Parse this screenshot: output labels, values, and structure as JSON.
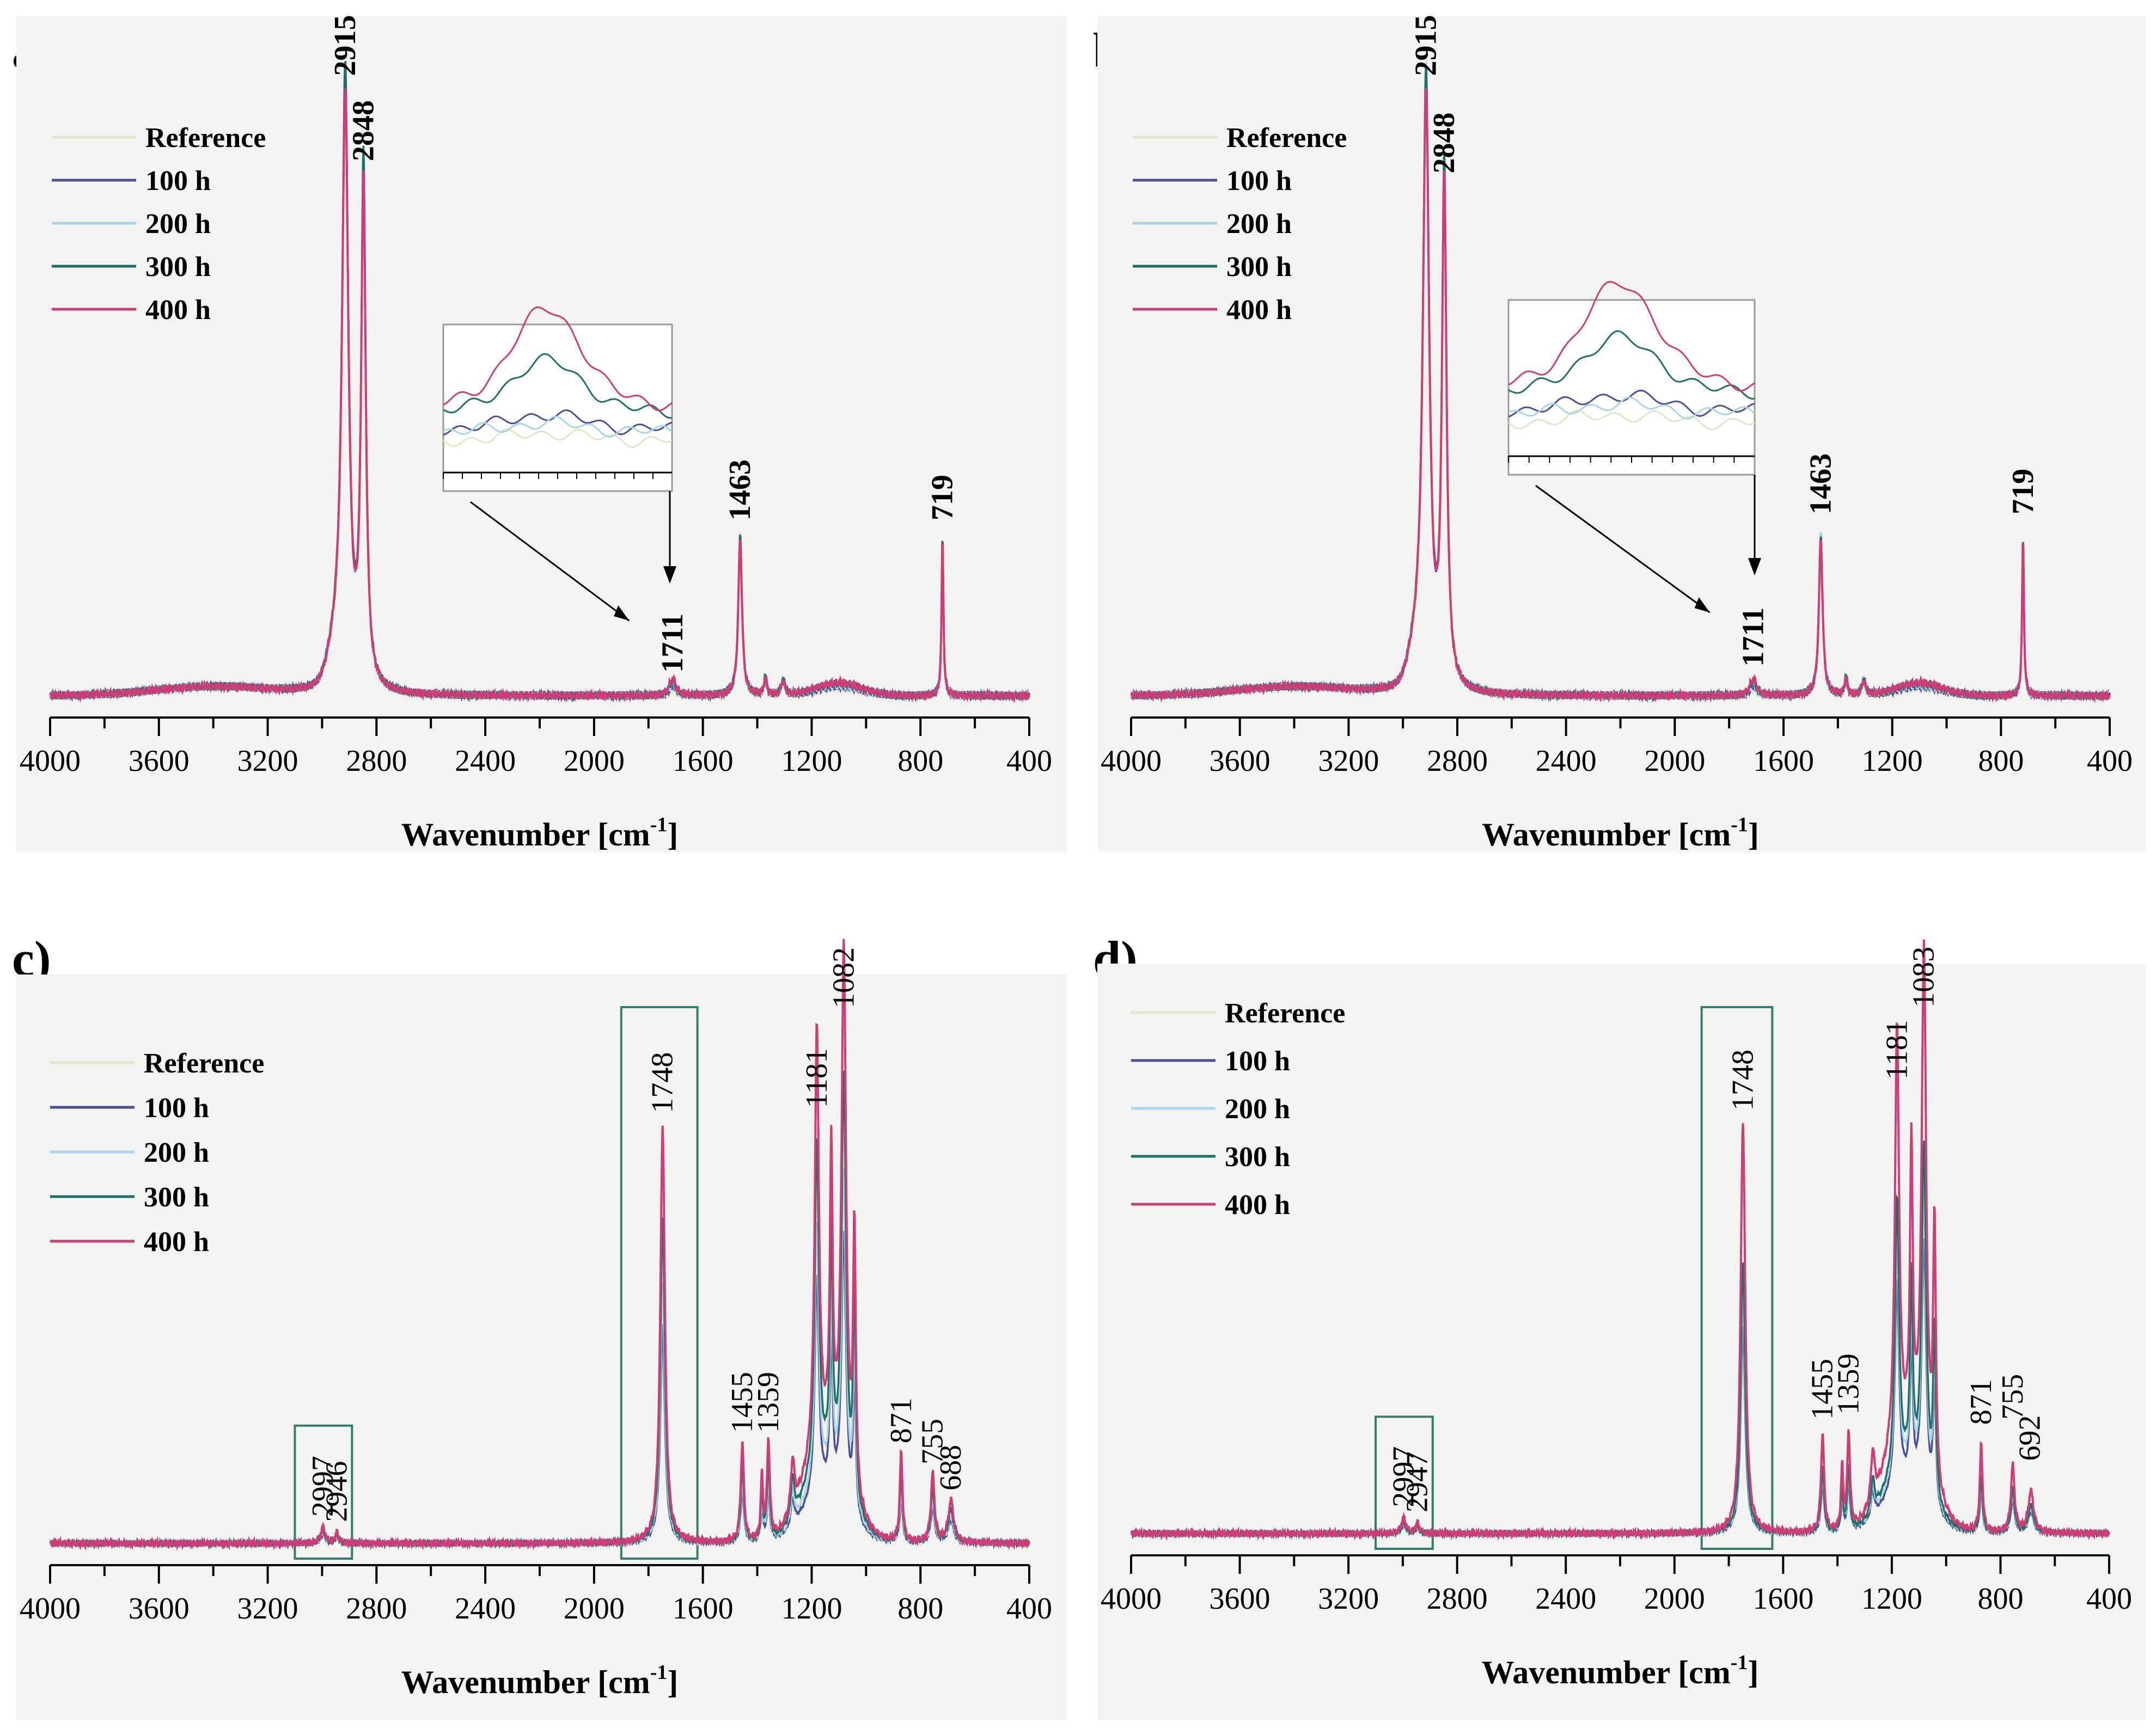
{
  "colors": {
    "plot_bg": "#f3f3f1",
    "reference": "#e2e5c8",
    "h100": "#4b4f9a",
    "h200": "#a9d6e3",
    "h300": "#1f7066",
    "h400": "#cf3d77",
    "box": "#2f7e6f",
    "inset_border": "#9a9a9a"
  },
  "chart_data": [
    {
      "label": "a)",
      "type": "line",
      "xlabel": "Wavenumber [cm",
      "xlabel_sup": "-1",
      "xlabel_end": "]",
      "xlim": [
        4000,
        400
      ],
      "ylim": [
        0,
        1.08
      ],
      "xticks": [
        "4000",
        "3600",
        "3200",
        "2800",
        "2400",
        "2000",
        "1600",
        "1200",
        "800",
        "400"
      ],
      "legend": [
        "Reference",
        "100 h",
        "200 h",
        "300 h",
        "400 h"
      ],
      "legend_position": "top-left",
      "series_scale": [
        0.97,
        0.98,
        0.99,
        1.0,
        0.96
      ],
      "sample_type": "PE",
      "peaks": [
        {
          "x": 2915,
          "label": "2915",
          "height": 1.0
        },
        {
          "x": 2848,
          "label": "2848",
          "height": 0.86
        },
        {
          "x": 1711,
          "label": "1711",
          "height": 0.02
        },
        {
          "x": 1463,
          "label": "1463",
          "height": 0.27
        },
        {
          "x": 719,
          "label": "719",
          "height": 0.27
        }
      ],
      "inset": true,
      "boxes": []
    },
    {
      "label": "b)",
      "type": "line",
      "xlabel": "Wavenumber [cm",
      "xlabel_sup": "-1",
      "xlabel_end": "]",
      "xlim": [
        4000,
        400
      ],
      "ylim": [
        0,
        1.08
      ],
      "xticks": [
        "4000",
        "3600",
        "3200",
        "2800",
        "2400",
        "2000",
        "1600",
        "1200",
        "800",
        "400"
      ],
      "legend": [
        "Reference",
        "100 h",
        "200 h",
        "300 h",
        "400 h"
      ],
      "legend_position": "top-left",
      "series_scale": [
        0.97,
        0.98,
        1.0,
        0.99,
        0.96
      ],
      "sample_type": "PE",
      "peaks": [
        {
          "x": 2915,
          "label": "2915",
          "height": 1.0
        },
        {
          "x": 2848,
          "label": "2848",
          "height": 0.84
        },
        {
          "x": 1711,
          "label": "1711",
          "height": 0.03
        },
        {
          "x": 1463,
          "label": "1463",
          "height": 0.28
        },
        {
          "x": 719,
          "label": "719",
          "height": 0.28
        }
      ],
      "inset": true,
      "boxes": []
    },
    {
      "label": "c)",
      "type": "line",
      "xlabel": "Wavenumber [cm",
      "xlabel_sup": "-1",
      "xlabel_end": "]",
      "xlim": [
        4000,
        400
      ],
      "ylim": [
        0,
        1.08
      ],
      "xticks": [
        "4000",
        "3600",
        "3200",
        "2800",
        "2400",
        "2000",
        "1600",
        "1200",
        "800",
        "400"
      ],
      "legend": [
        "Reference",
        "100 h",
        "200 h",
        "300 h",
        "400 h"
      ],
      "legend_position": "top-left",
      "series_scale": [
        0.52,
        0.52,
        0.62,
        0.78,
        1.0
      ],
      "sample_type": "PLA",
      "peaks": [
        {
          "x": 2997,
          "label": "2997",
          "height": 0.03
        },
        {
          "x": 2946,
          "label": "2946",
          "height": 0.02
        },
        {
          "x": 1748,
          "label": "1748",
          "height": 0.8
        },
        {
          "x": 1455,
          "label": "1455",
          "height": 0.19
        },
        {
          "x": 1359,
          "label": "1359",
          "height": 0.19
        },
        {
          "x": 1181,
          "label": "1181",
          "height": 0.81
        },
        {
          "x": 1082,
          "label": "1082",
          "height": 1.0
        },
        {
          "x": 871,
          "label": "871",
          "height": 0.17
        },
        {
          "x": 755,
          "label": "755",
          "height": 0.13
        },
        {
          "x": 688,
          "label": "688",
          "height": 0.08
        }
      ],
      "inset": false,
      "boxes": [
        [
          3100,
          2890
        ],
        [
          1900,
          1620
        ]
      ]
    },
    {
      "label": "d)",
      "type": "line",
      "xlabel": "Wavenumber [cm",
      "xlabel_sup": "-1",
      "xlabel_end": "]",
      "xlim": [
        4000,
        400
      ],
      "ylim": [
        0,
        1.08
      ],
      "xticks": [
        "4000",
        "3600",
        "3200",
        "2800",
        "2400",
        "2000",
        "1600",
        "1200",
        "800",
        "400"
      ],
      "legend": [
        "Reference",
        "100 h",
        "200 h",
        "300 h",
        "400 h"
      ],
      "legend_position": "top-left",
      "series_scale": [
        0.5,
        0.5,
        0.58,
        0.66,
        1.0
      ],
      "sample_type": "PLA",
      "peaks": [
        {
          "x": 2997,
          "label": "2997",
          "height": 0.03
        },
        {
          "x": 2947,
          "label": "2947",
          "height": 0.02
        },
        {
          "x": 1748,
          "label": "1748",
          "height": 0.8
        },
        {
          "x": 1455,
          "label": "1455",
          "height": 0.2
        },
        {
          "x": 1359,
          "label": "1359",
          "height": 0.21
        },
        {
          "x": 1181,
          "label": "1181",
          "height": 0.86
        },
        {
          "x": 1083,
          "label": "1083",
          "height": 1.0
        },
        {
          "x": 871,
          "label": "871",
          "height": 0.19
        },
        {
          "x": 755,
          "label": "755",
          "height": 0.2
        },
        {
          "x": 692,
          "label": "692",
          "height": 0.12
        }
      ],
      "inset": false,
      "boxes": [
        [
          3100,
          2890
        ],
        [
          1900,
          1640
        ]
      ]
    }
  ]
}
